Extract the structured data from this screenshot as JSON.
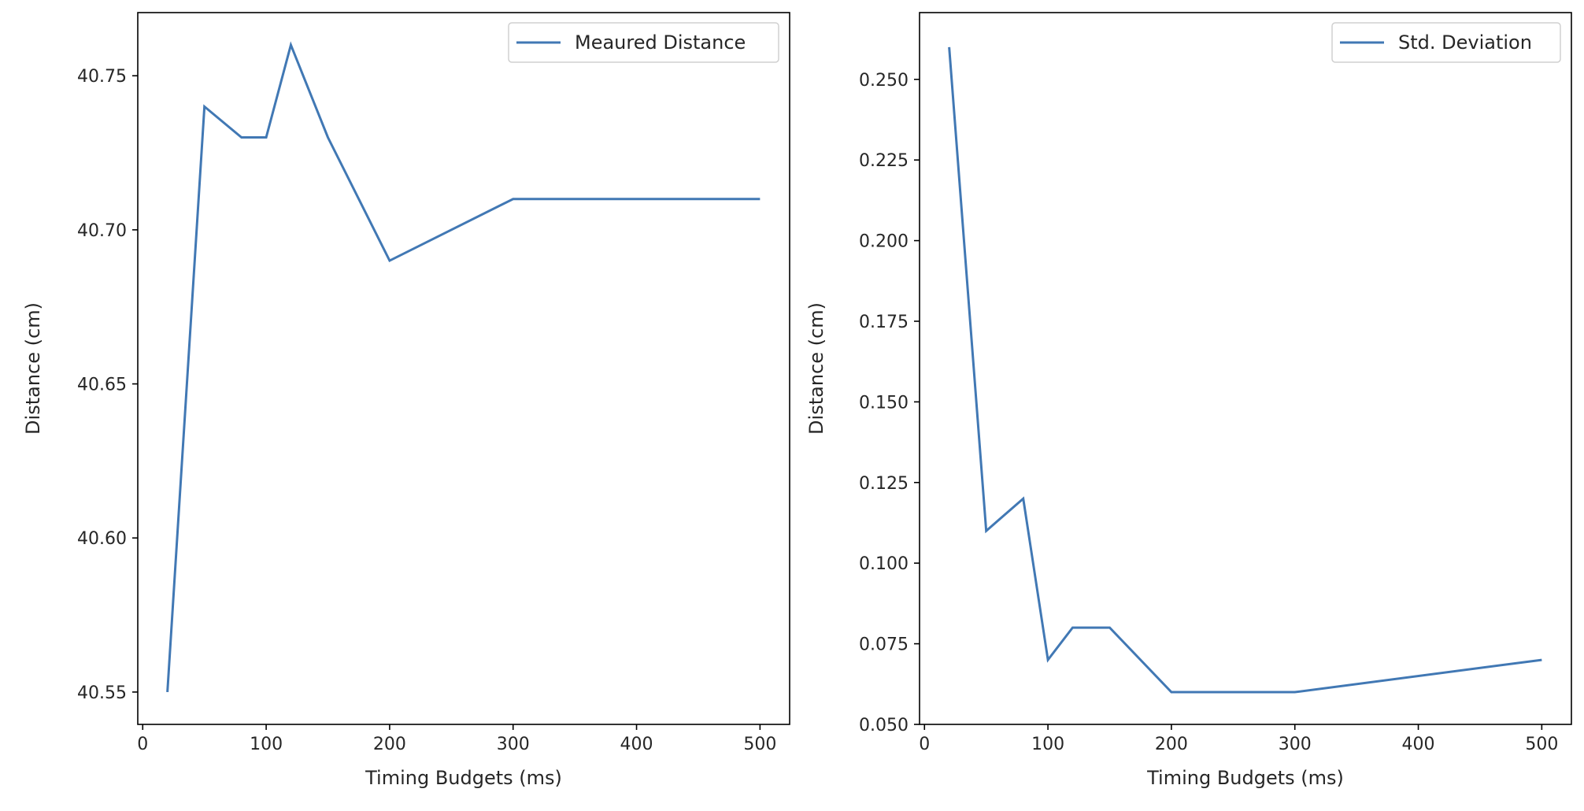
{
  "colors": {
    "series": "#4178b4",
    "axis": "#000000",
    "text": "#262626"
  },
  "chart_data": [
    {
      "type": "line",
      "xlabel": "Timing Budgets (ms)",
      "ylabel": "Distance (cm)",
      "xlim": [
        -4,
        524
      ],
      "ylim": [
        40.5395,
        40.7705
      ],
      "xticks": [
        0,
        100,
        200,
        300,
        400,
        500
      ],
      "yticks": [
        40.55,
        40.6,
        40.65,
        40.7,
        40.75
      ],
      "ytick_decimals": 2,
      "legend": "top-right",
      "grid": false,
      "series": [
        {
          "name": "Meaured Distance",
          "x": [
            20,
            50,
            80,
            100,
            120,
            150,
            200,
            300,
            500
          ],
          "y": [
            40.55,
            40.74,
            40.73,
            40.73,
            40.76,
            40.73,
            40.69,
            40.71,
            40.71
          ]
        }
      ]
    },
    {
      "type": "line",
      "xlabel": "Timing Budgets (ms)",
      "ylabel": "Distance (cm)",
      "xlim": [
        -4,
        524
      ],
      "ylim": [
        0.05,
        0.2707
      ],
      "xticks": [
        0,
        100,
        200,
        300,
        400,
        500
      ],
      "yticks": [
        0.05,
        0.075,
        0.1,
        0.125,
        0.15,
        0.175,
        0.2,
        0.225,
        0.25
      ],
      "ytick_decimals": 3,
      "legend": "top-right",
      "grid": false,
      "series": [
        {
          "name": "Std. Deviation",
          "x": [
            20,
            50,
            80,
            100,
            120,
            150,
            200,
            300,
            500
          ],
          "y": [
            0.26,
            0.11,
            0.12,
            0.07,
            0.08,
            0.08,
            0.06,
            0.06,
            0.07
          ]
        }
      ]
    }
  ]
}
